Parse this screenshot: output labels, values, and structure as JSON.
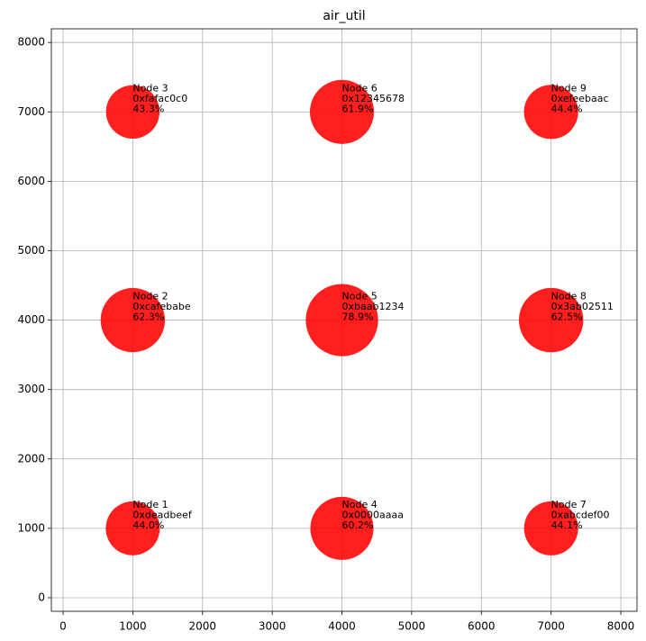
{
  "chart_data": {
    "type": "bubble",
    "title": "air_util",
    "x": [
      1000,
      1000,
      1000,
      4000,
      4000,
      4000,
      7000,
      7000,
      7000
    ],
    "y": [
      1000,
      4000,
      7000,
      1000,
      4000,
      7000,
      1000,
      4000,
      7000
    ],
    "values": [
      44.0,
      62.3,
      43.3,
      60.2,
      78.9,
      61.9,
      44.1,
      62.5,
      44.4
    ],
    "value_labels": [
      "44.0%",
      "62.3%",
      "43.3%",
      "60.2%",
      "78.9%",
      "61.9%",
      "44.1%",
      "62.5%",
      "44.4%"
    ],
    "node_names": [
      "Node 1",
      "Node 2",
      "Node 3",
      "Node 4",
      "Node 5",
      "Node 6",
      "Node 7",
      "Node 8",
      "Node 9"
    ],
    "node_ids": [
      "0xdeadbeef",
      "0xcafebabe",
      "0xfafac0c0",
      "0x0000aaaa",
      "0xbaab1234",
      "0x12345678",
      "0xabcdef00",
      "0x3ab02511",
      "0xefeebaac"
    ],
    "color": "#ff0000",
    "xlim": [
      -168,
      8232
    ],
    "xticks": [
      0,
      1000,
      2000,
      3000,
      4000,
      5000,
      6000,
      7000,
      8000
    ],
    "ylim": [
      -195,
      8197
    ],
    "yticks": [
      0,
      1000,
      2000,
      3000,
      4000,
      5000,
      6000,
      7000,
      8000
    ],
    "grid": true
  }
}
